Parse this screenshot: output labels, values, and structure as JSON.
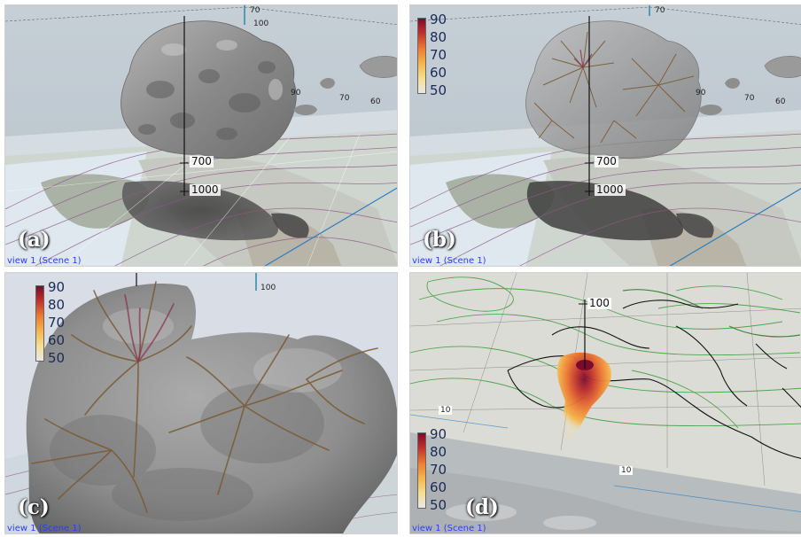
{
  "colors": {
    "cloud": "#8a8a8a",
    "trajectory": "#7a5a32",
    "land": "#c8ccc6",
    "ocean": "#d9e4ec",
    "contour_purple": "#8c5a8a",
    "contour_green": "#3a9a3a",
    "view_label": "#2a3cff",
    "colormap": [
      "#e8e8e8",
      "#f5df8f",
      "#f6b44b",
      "#ec7b32",
      "#c2322b",
      "#7b0b2e"
    ]
  },
  "panels": [
    {
      "letter": "(a)",
      "view_label": "view 1 (Scene 1)",
      "pressure_labels": [
        "700",
        "1000"
      ],
      "axis_label": "100",
      "top_axis_label": "70",
      "small_labels": [
        "90",
        "70",
        "60"
      ]
    },
    {
      "letter": "(b)",
      "view_label": "view 1 (Scene 1)",
      "pressure_labels": [
        "700",
        "1000"
      ],
      "top_axis_label": "70",
      "small_labels": [
        "90",
        "70",
        "60"
      ],
      "colorbar_ticks": [
        "90",
        "80",
        "70",
        "60",
        "50"
      ]
    },
    {
      "letter": "(c)",
      "view_label": "view 1 (Scene 1)",
      "axis_label": "100",
      "colorbar_ticks": [
        "90",
        "80",
        "70",
        "60",
        "50"
      ]
    },
    {
      "letter": "(d)",
      "view_label": "view 1 (Scene 1)",
      "axis_label": "100",
      "small_labels": [
        "10",
        "10"
      ],
      "colorbar_ticks": [
        "90",
        "80",
        "70",
        "60",
        "50"
      ]
    }
  ]
}
